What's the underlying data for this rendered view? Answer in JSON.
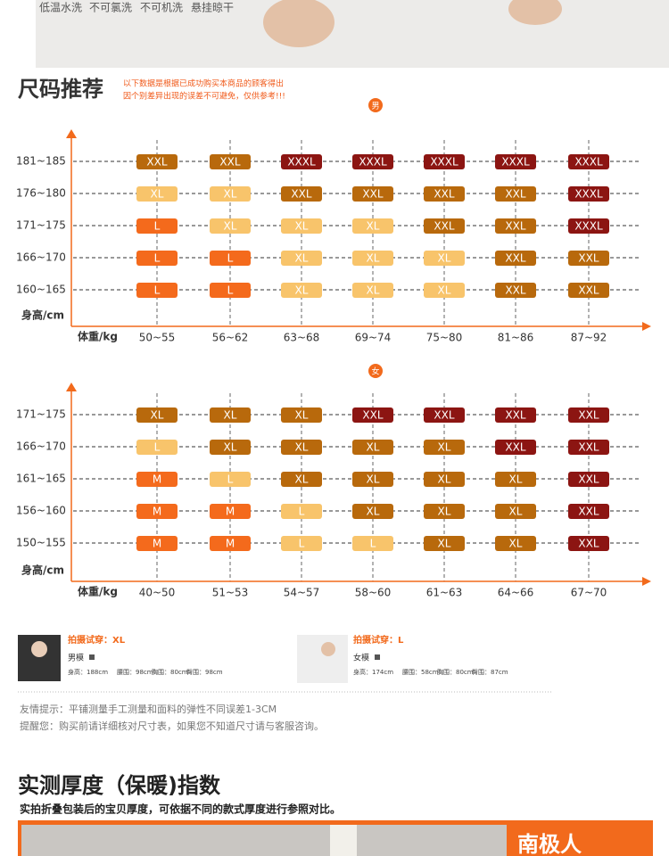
{
  "banner": {
    "care": [
      "低温水洗",
      "不可氯洗",
      "不可机洗",
      "悬挂晾干"
    ]
  },
  "size_section": {
    "title": "尺码推荐",
    "notes": [
      "以下数据是根据已成功购买本商品的顾客得出",
      "因个别差异出现的误差不可避免，仅供参考!!!"
    ]
  },
  "size_charts": [
    {
      "gender": "男",
      "y_label": "身高/cm",
      "x_label": "体重/kg",
      "heights": [
        "181~185",
        "176~180",
        "171~175",
        "166~170",
        "160~165"
      ],
      "weights": [
        "50~55",
        "56~62",
        "63~68",
        "69~74",
        "75~80",
        "81~86",
        "87~92"
      ],
      "sizes": [
        [
          "XXL",
          "XXL",
          "XXXL",
          "XXXL",
          "XXXL",
          "XXXL",
          "XXXL"
        ],
        [
          "XL",
          "XL",
          "XXL",
          "XXL",
          "XXL",
          "XXL",
          "XXXL"
        ],
        [
          "L",
          "XL",
          "XL",
          "XL",
          "XXL",
          "XXL",
          "XXXL"
        ],
        [
          "L",
          "L",
          "XL",
          "XL",
          "XL",
          "XXL",
          "XXL"
        ],
        [
          "L",
          "L",
          "XL",
          "XL",
          "XL",
          "XXL",
          "XXL"
        ]
      ],
      "size_colors": {
        "L": "#f46a1c",
        "XL": "#f8c46b",
        "XXL": "#b8690c",
        "XXXL": "#8c1512"
      }
    },
    {
      "gender": "女",
      "y_label": "身高/cm",
      "x_label": "体重/kg",
      "heights": [
        "171~175",
        "166~170",
        "161~165",
        "156~160",
        "150~155"
      ],
      "weights": [
        "40~50",
        "51~53",
        "54~57",
        "58~60",
        "61~63",
        "64~66",
        "67~70"
      ],
      "sizes": [
        [
          "XL",
          "XL",
          "XL",
          "XXL",
          "XXL",
          "XXL",
          "XXL"
        ],
        [
          "L",
          "XL",
          "XL",
          "XL",
          "XL",
          "XXL",
          "XXL"
        ],
        [
          "M",
          "L",
          "XL",
          "XL",
          "XL",
          "XL",
          "XXL"
        ],
        [
          "M",
          "M",
          "L",
          "XL",
          "XL",
          "XL",
          "XXL"
        ],
        [
          "M",
          "M",
          "L",
          "L",
          "XL",
          "XL",
          "XXL"
        ]
      ],
      "size_colors": {
        "M": "#f46a1c",
        "L": "#f8c46b",
        "XL": "#b8690c",
        "XXL": "#8c1512"
      }
    }
  ],
  "models": [
    {
      "tried": "拍摄试穿：XL",
      "label": "男模",
      "measurements": [
        "身高：188cm",
        "腰围：98cm",
        "胸围：80cm",
        "臀围：98cm"
      ]
    },
    {
      "tried": "拍摄试穿：L",
      "label": "女模",
      "measurements": [
        "身高：174cm",
        "腰围：58cm",
        "胸围：80cm",
        "臀围：87cm"
      ]
    }
  ],
  "tips": [
    "友情提示：平铺测量手工测量和面料的弹性不同误差1-3CM",
    "提醒您：购买前请详细核对尺寸表，如果您不知道尺寸请与客服咨询。"
  ],
  "thickness": {
    "title": "实测厚度（保暖)指数",
    "subtitle": "实拍折叠包装后的宝贝厚度，可依据不同的款式厚度进行参照对比。",
    "brand": "南极人"
  }
}
